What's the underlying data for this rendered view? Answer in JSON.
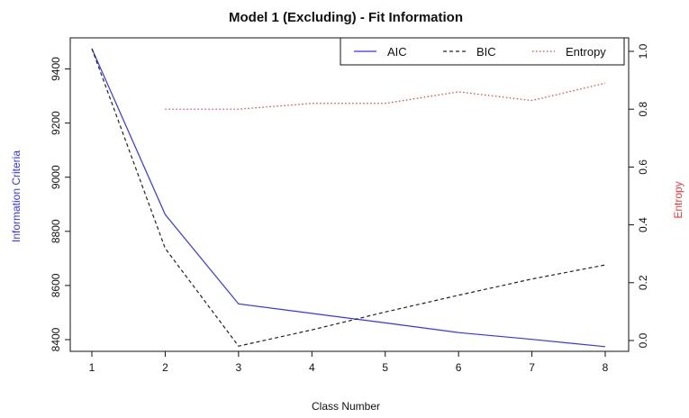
{
  "chart_data": {
    "type": "line",
    "title": "Model 1 (Excluding) - Fit Information",
    "xlabel": "Class Number",
    "ylabel_left": "Information Criteria",
    "ylabel_right": "Entropy",
    "x": [
      1,
      2,
      3,
      4,
      5,
      6,
      7,
      8
    ],
    "x_ticks": [
      "1",
      "2",
      "3",
      "4",
      "5",
      "6",
      "7",
      "8"
    ],
    "x_range": [
      1,
      8
    ],
    "y_left_range": [
      8390,
      9475
    ],
    "y_left_ticks": [
      "8400",
      "8600",
      "8800",
      "9000",
      "9200",
      "9400"
    ],
    "y_left_tick_values": [
      8400,
      8600,
      8800,
      9000,
      9200,
      9400
    ],
    "y_right_range": [
      0.0,
      1.0
    ],
    "y_right_ticks": [
      "0.0",
      "0.2",
      "0.4",
      "0.6",
      "0.8",
      "1.0"
    ],
    "y_right_tick_values": [
      0.0,
      0.2,
      0.4,
      0.6,
      0.8,
      1.0
    ],
    "grid": false,
    "legend_position": "top-right",
    "series": [
      {
        "name": "AIC",
        "axis": "left",
        "color": "#3333ff",
        "style": "solid",
        "values": [
          9475,
          8862,
          8532,
          8497,
          8462,
          8426,
          8401,
          8374
        ]
      },
      {
        "name": "BIC",
        "axis": "right_left_scale",
        "color": "#222222",
        "style": "dashed",
        "axis_scale": "left",
        "values": [
          9475,
          8737,
          8376,
          8436,
          8502,
          8564,
          8624,
          8676
        ]
      },
      {
        "name": "Entropy",
        "axis": "right",
        "color": "#ff3333",
        "style": "dotted",
        "values": [
          null,
          0.8,
          0.8,
          0.82,
          0.82,
          0.86,
          0.83,
          0.89
        ]
      }
    ],
    "colors": {
      "left_axis": "#3333ff",
      "right_axis": "#ff3333",
      "frame": "#111111"
    }
  }
}
